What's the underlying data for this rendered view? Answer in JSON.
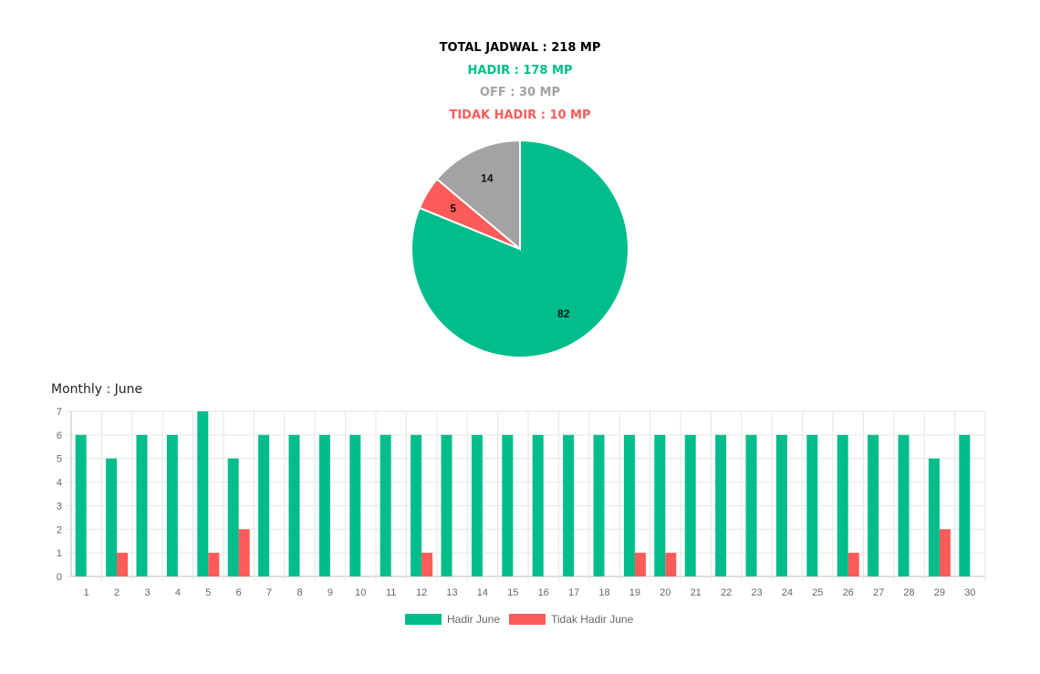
{
  "summary": {
    "total": "TOTAL JADWAL : 218 MP",
    "hadir": "HADIR : 178 MP",
    "off": "OFF : 30 MP",
    "tidak_hadir": "TIDAK HADIR : 10 MP"
  },
  "colors": {
    "hadir": "#00bd8b",
    "tidak_hadir": "#fb5b59",
    "off": "#a3a3a3",
    "total": "#000000"
  },
  "monthly_title": "Monthly : June",
  "chart_data": [
    {
      "type": "pie",
      "slices": [
        {
          "label": "Hadir",
          "value": 82,
          "color": "#00bd8b"
        },
        {
          "label": "Tidak Hadir",
          "value": 5,
          "color": "#fb5b59"
        },
        {
          "label": "Off",
          "value": 14,
          "color": "#a3a3a3"
        }
      ]
    },
    {
      "type": "bar",
      "categories": [
        "1",
        "2",
        "3",
        "4",
        "5",
        "6",
        "7",
        "8",
        "9",
        "10",
        "11",
        "12",
        "13",
        "14",
        "15",
        "16",
        "17",
        "18",
        "19",
        "20",
        "21",
        "22",
        "23",
        "24",
        "25",
        "26",
        "27",
        "28",
        "29",
        "30"
      ],
      "series": [
        {
          "name": "Hadir June",
          "color": "#00bd8b",
          "values": [
            6,
            5,
            6,
            6,
            7,
            5,
            6,
            6,
            6,
            6,
            6,
            6,
            6,
            6,
            6,
            6,
            6,
            6,
            6,
            6,
            6,
            6,
            6,
            6,
            6,
            6,
            6,
            6,
            5,
            6
          ]
        },
        {
          "name": "Tidak Hadir June",
          "color": "#fb5b59",
          "values": [
            0,
            1,
            0,
            0,
            1,
            2,
            0,
            0,
            0,
            0,
            0,
            1,
            0,
            0,
            0,
            0,
            0,
            0,
            1,
            1,
            0,
            0,
            0,
            0,
            0,
            1,
            0,
            0,
            2,
            0
          ]
        }
      ],
      "ylim": [
        0,
        7
      ],
      "yticks": [
        "0",
        "1",
        "2",
        "3",
        "4",
        "5",
        "6",
        "7"
      ],
      "grid": true,
      "legend": "bottom"
    }
  ]
}
